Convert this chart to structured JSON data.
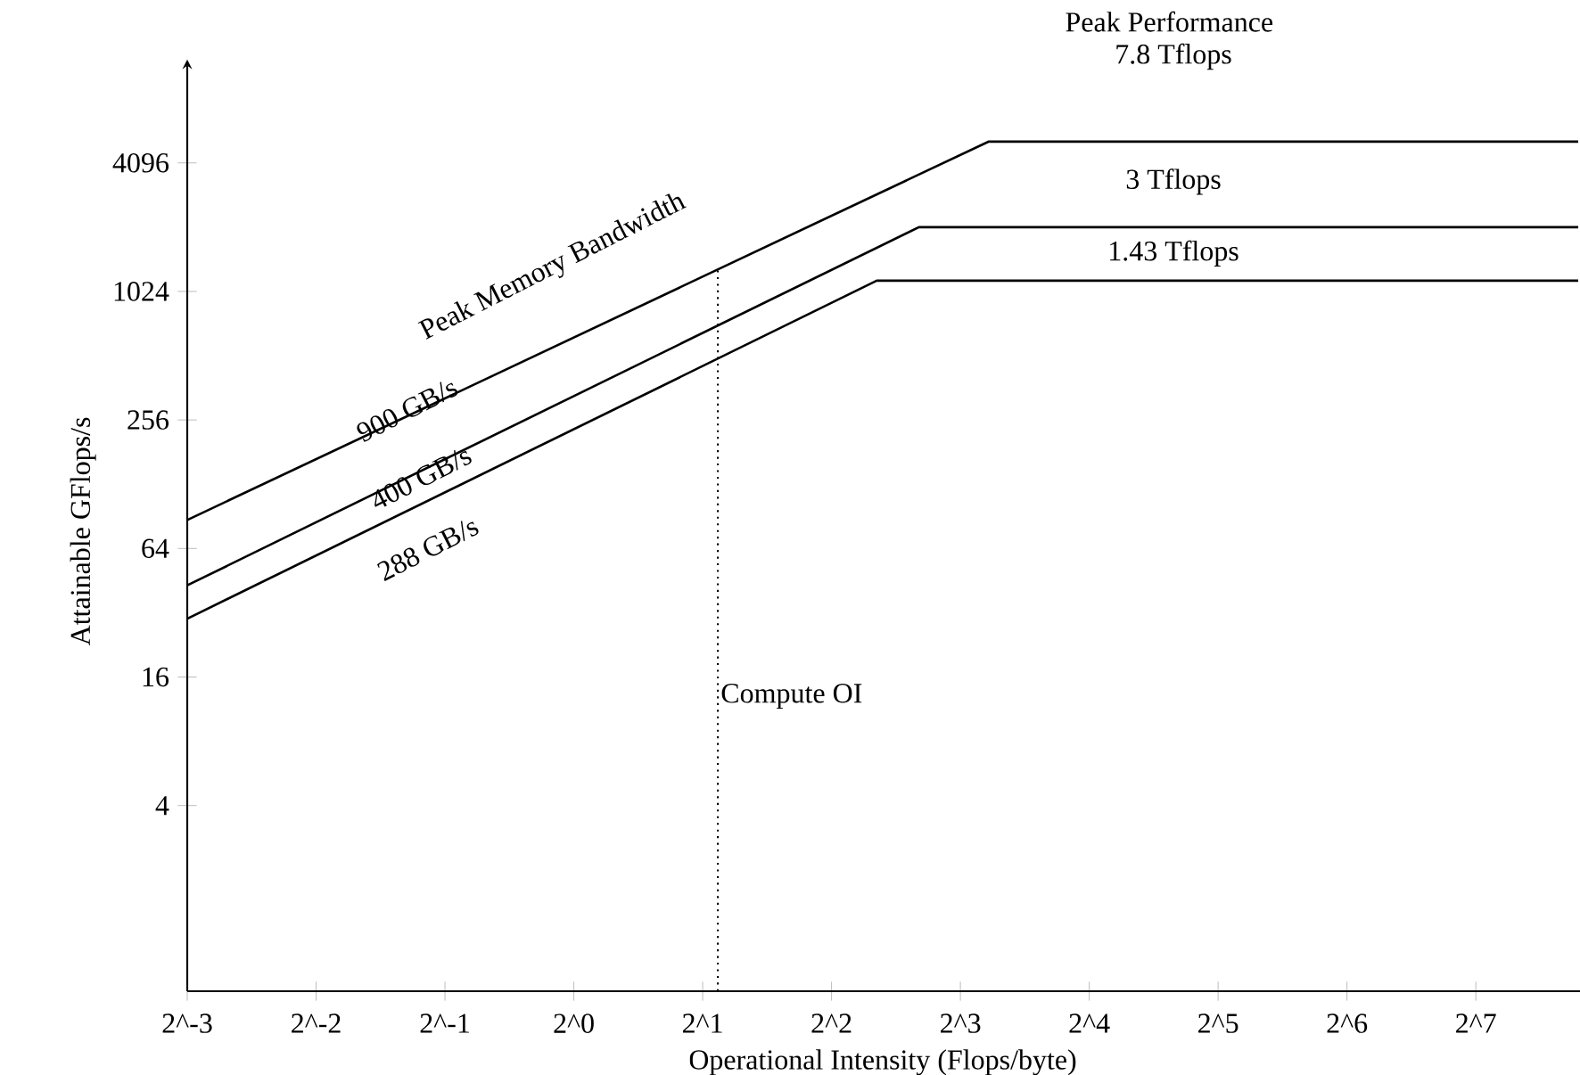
{
  "chart_data": {
    "type": "line",
    "xlabel": "Operational Intensity (Flops/byte)",
    "ylabel": "Attainable GFlops/s",
    "log": "xy",
    "grid": false,
    "marker": "none",
    "line_style": "solid",
    "xlim": [
      0.125,
      222
    ],
    "ylim": [
      0.54,
      11000
    ],
    "xticks": [
      {
        "value": 0.125,
        "label": "2^-3"
      },
      {
        "value": 0.25,
        "label": "2^-2"
      },
      {
        "value": 0.5,
        "label": "2^-1"
      },
      {
        "value": 1,
        "label": "2^0"
      },
      {
        "value": 2,
        "label": "2^1"
      },
      {
        "value": 4,
        "label": "2^2"
      },
      {
        "value": 8,
        "label": "2^3"
      },
      {
        "value": 16,
        "label": "2^4"
      },
      {
        "value": 32,
        "label": "2^5"
      },
      {
        "value": 64,
        "label": "2^6"
      },
      {
        "value": 128,
        "label": "2^7"
      }
    ],
    "yticks": [
      4,
      16,
      64,
      256,
      1024,
      4096
    ],
    "series": [
      {
        "color": "#000000",
        "x": [
          0.125,
          9.3,
          222
        ],
        "values": [
          87,
          5150,
          5150
        ]
      },
      {
        "color": "#000000",
        "x": [
          0.125,
          6.4,
          222
        ],
        "values": [
          43,
          2048,
          2048
        ]
      },
      {
        "color": "#000000",
        "x": [
          0.125,
          5.1,
          222
        ],
        "values": [
          30,
          1150,
          1150
        ]
      }
    ],
    "ref_lines": [
      {
        "axis": "x",
        "value": 2.17,
        "label": "Compute OI",
        "line_style": "dotted",
        "color": "#000000"
      }
    ],
    "annotations": [
      "Peak Memory Bandwidth",
      "900 GB/s",
      "400 GB/s",
      "288 GB/s",
      "Peak Performance",
      "7.8 Tflops",
      "3 Tflops",
      "1.43 Tflops"
    ]
  }
}
